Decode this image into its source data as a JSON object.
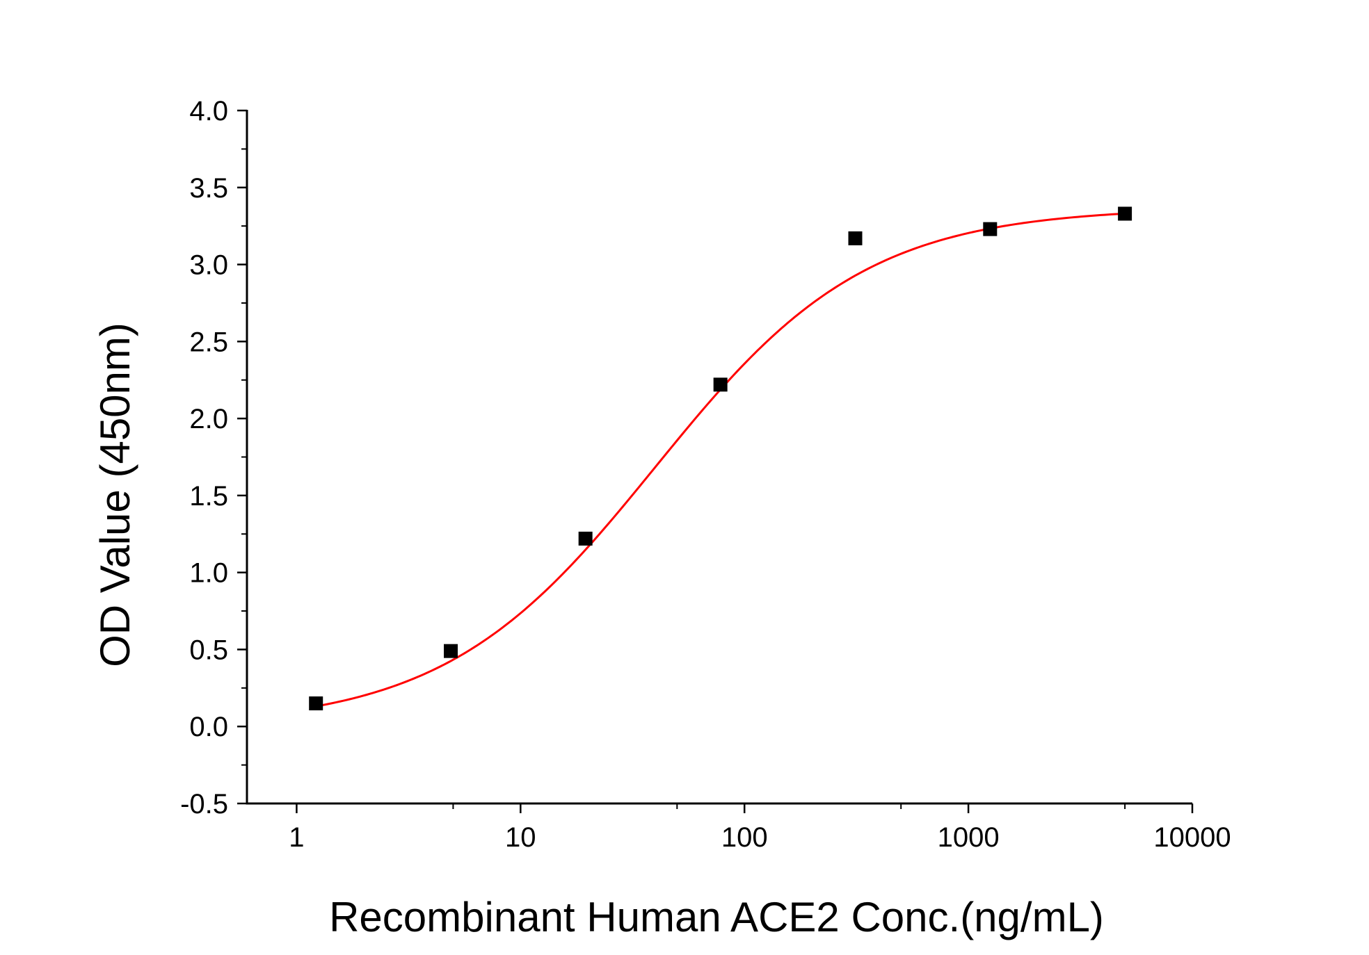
{
  "chart_data": {
    "type": "scatter",
    "title": "",
    "xlabel": "Recombinant Human ACE2 Conc.(ng/mL)",
    "ylabel": "OD Value (450nm)",
    "xscale": "log",
    "xlim": [
      0.6,
      10000
    ],
    "ylim": [
      -0.5,
      4.0
    ],
    "x_ticks": [
      1,
      10,
      100,
      1000,
      10000
    ],
    "x_tick_labels": [
      "1",
      "10",
      "100",
      "1000",
      "10000"
    ],
    "y_ticks": [
      -0.5,
      0.0,
      0.5,
      1.0,
      1.5,
      2.0,
      2.5,
      3.0,
      3.5,
      4.0
    ],
    "y_tick_labels": [
      "-0.5",
      "0.0",
      "0.5",
      "1.0",
      "1.5",
      "2.0",
      "2.5",
      "3.0",
      "3.5",
      "4.0"
    ],
    "grid": false,
    "legend": "none",
    "series": [
      {
        "kind": "points",
        "marker": "square",
        "color": "#000000",
        "x": [
          1.22,
          4.88,
          19.5,
          78.1,
          312.5,
          1250,
          5000
        ],
        "y": [
          0.15,
          0.49,
          1.22,
          2.22,
          3.17,
          3.23,
          3.33
        ]
      },
      {
        "kind": "fit-curve",
        "model": "4PL",
        "color": "#ff0000",
        "x_range": [
          1.22,
          5000
        ],
        "params": {
          "bottom": 0.0,
          "top": 3.37,
          "ec50": 40.0,
          "hill": 0.92
        }
      }
    ]
  }
}
